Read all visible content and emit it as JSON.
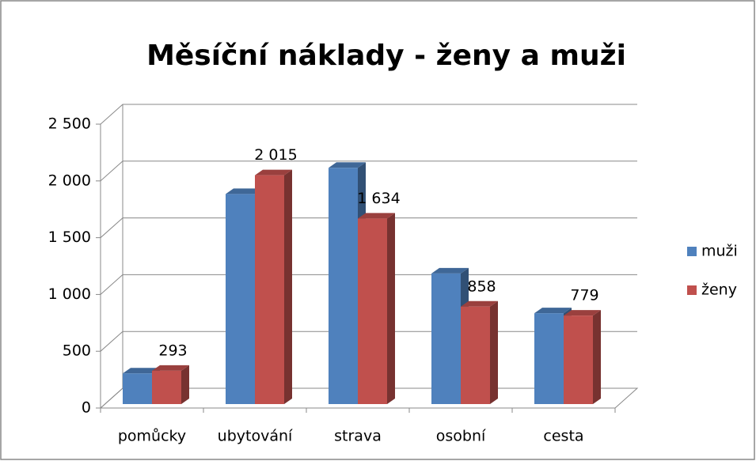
{
  "chart_data": {
    "type": "bar3d",
    "title": "Měsíční náklady - ženy a muži",
    "categories": [
      "pomůcky",
      "ubytování",
      "strava",
      "osobní",
      "cesta"
    ],
    "series": [
      {
        "name": "muži",
        "color": "#4f81bd",
        "values": [
          270,
          1850,
          2080,
          1150,
          800
        ]
      },
      {
        "name": "ženy",
        "color": "#c0504d",
        "values": [
          293,
          2015,
          1634,
          858,
          779
        ],
        "value_labels": [
          "293",
          "2 015",
          "1 634",
          "858",
          "779"
        ]
      }
    ],
    "ylim": [
      0,
      2500
    ],
    "yticks": [
      0,
      500,
      {
        "value": 1000,
        "label": "1 000"
      },
      {
        "value": 1500,
        "label": "1 500"
      },
      {
        "value": 2000,
        "label": "2 000"
      },
      {
        "value": 2500,
        "label": "2 500"
      }
    ],
    "grid": true,
    "legend": "right"
  }
}
